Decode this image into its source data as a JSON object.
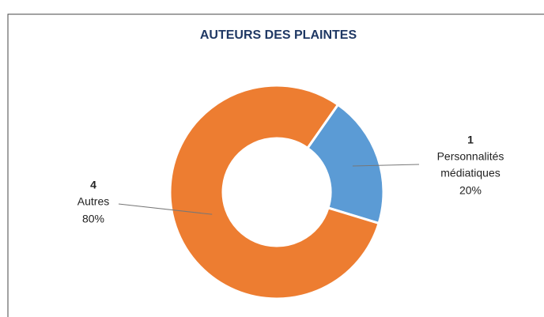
{
  "chart_data": {
    "type": "donut",
    "title": "AUTEURS DES PLAINTES",
    "categories": [
      "Personnalités médiatiques",
      "Autres"
    ],
    "label_lines": [
      [
        "Personnalités",
        "médiatiques"
      ],
      [
        "Autres"
      ]
    ],
    "values": [
      1,
      4
    ],
    "percentages": [
      20,
      80
    ],
    "percentage_labels": [
      "20%",
      "80%"
    ],
    "colors": [
      "#5b9bd5",
      "#ed7d31"
    ],
    "first_slice_angle": 35
  }
}
